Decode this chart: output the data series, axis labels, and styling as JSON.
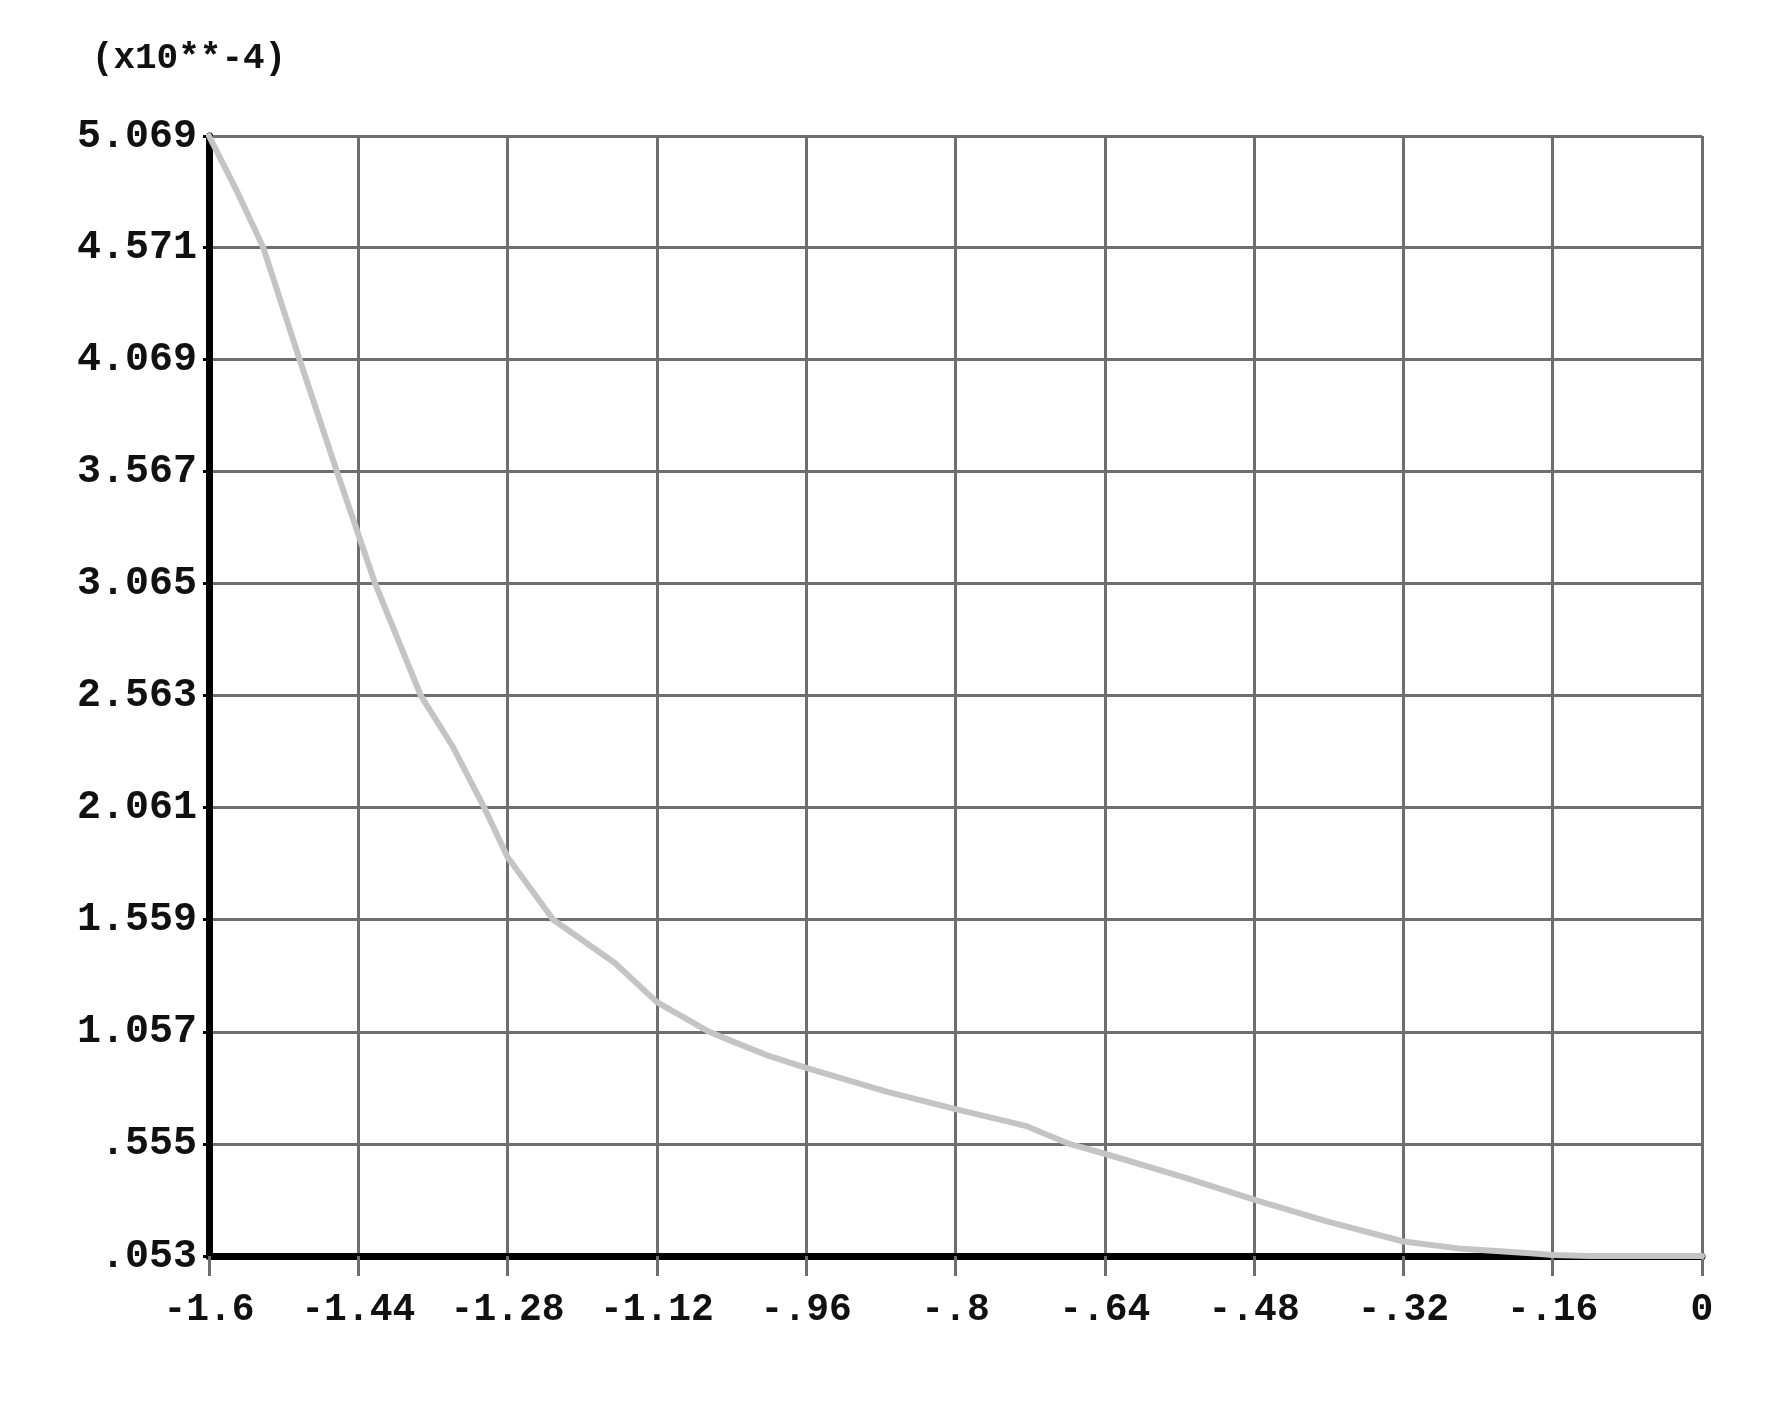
{
  "chart_data": {
    "type": "line",
    "ylabel": "(x10**-4)",
    "x": [
      -1.6,
      -1.571,
      -1.542,
      -1.503,
      -1.463,
      -1.422,
      -1.373,
      -1.339,
      -1.305,
      -1.28,
      -1.231,
      -1.165,
      -1.12,
      -1.064,
      -1.043,
      -1.0,
      -0.96,
      -0.873,
      -0.8,
      -0.725,
      -0.678,
      -0.64,
      -0.555,
      -0.48,
      -0.401,
      -0.32,
      -0.257,
      -0.2,
      -0.16,
      -0.12,
      0
    ],
    "series": [
      {
        "color": "#c4c4c4",
        "values": [
          5.069,
          4.83,
          4.571,
          4.069,
          3.567,
          3.065,
          2.563,
          2.336,
          2.061,
          1.839,
          1.559,
          1.365,
          1.19,
          1.057,
          1.021,
          0.949,
          0.896,
          0.788,
          0.711,
          0.636,
          0.555,
          0.511,
          0.405,
          0.305,
          0.207,
          0.118,
          0.085,
          0.07,
          0.058,
          0.053,
          0.053
        ]
      }
    ],
    "xlim": [
      -1.6,
      0
    ],
    "ylim": [
      0.053,
      5.069
    ],
    "xticks": [
      -1.6,
      -1.44,
      -1.28,
      -1.12,
      {
        "value": -0.96,
        "label": "-.96"
      },
      {
        "value": -0.8,
        "label": "-.8"
      },
      {
        "value": -0.64,
        "label": "-.64"
      },
      {
        "value": -0.48,
        "label": "-.48"
      },
      {
        "value": -0.32,
        "label": "-.32"
      },
      {
        "value": -0.16,
        "label": "-.16"
      },
      0
    ],
    "yticks": [
      {
        "value": 0.053,
        "label": ".053"
      },
      {
        "value": 0.555,
        "label": ".555"
      },
      1.057,
      1.559,
      2.061,
      2.563,
      3.065,
      3.567,
      4.069,
      4.571,
      5.069
    ],
    "grid": true,
    "marker": "none",
    "line_style": "solid"
  }
}
